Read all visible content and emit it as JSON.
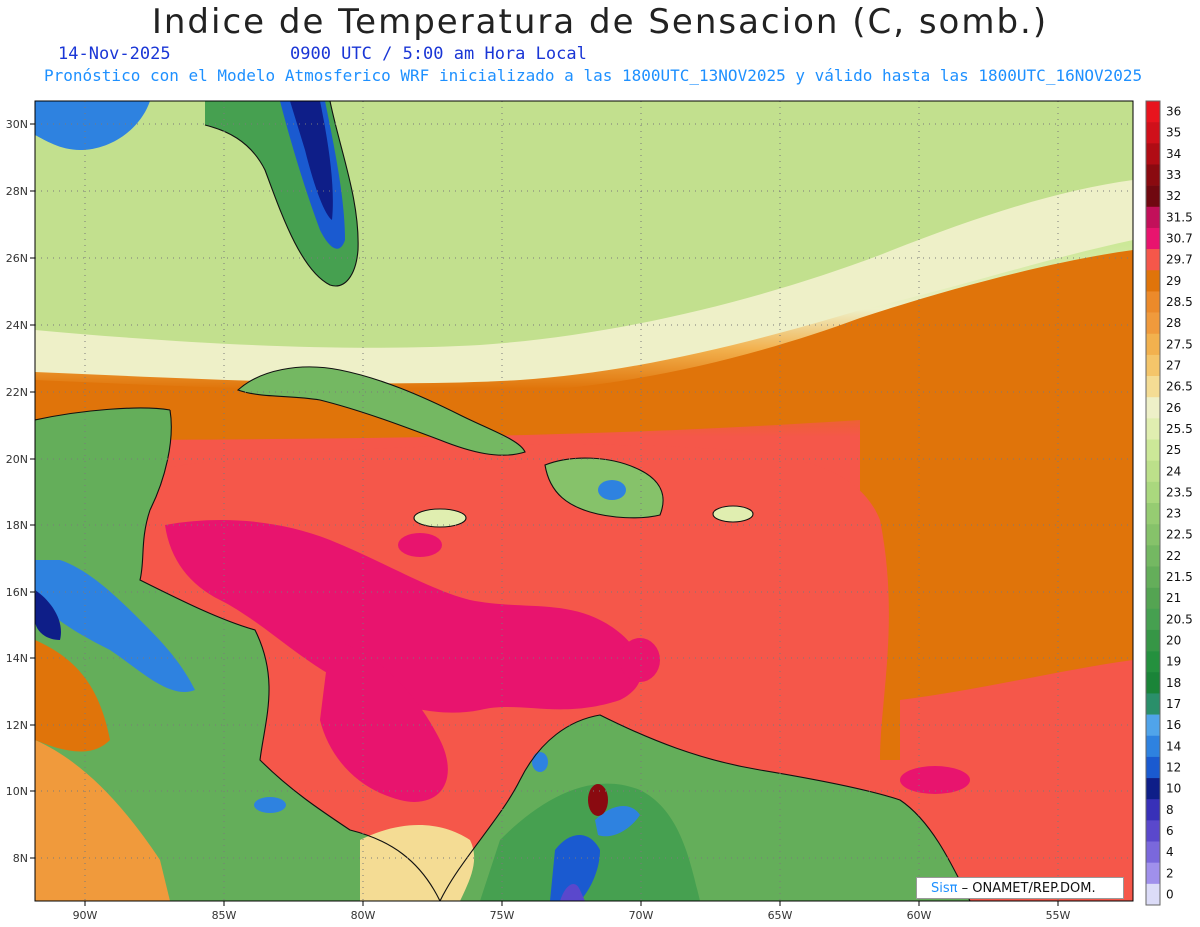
{
  "title": "Indice de Temperatura de Sensacion (C, somb.)",
  "date": "14-Nov-2025",
  "time": "0900 UTC / 5:00 am Hora Local",
  "model_line": "Pronóstico con el Modelo Atmosferico WRF inicializado a las 1800UTC_13NOV2025 y válido hasta las  1800UTC_16NOV2025",
  "credit": {
    "sis": "Sisπ",
    "rest": "– ONAMET/REP.DOM."
  },
  "axes": {
    "x_ticks": [
      "90W",
      "85W",
      "80W",
      "75W",
      "70W",
      "65W",
      "60W",
      "55W"
    ],
    "y_ticks": [
      "30N",
      "28N",
      "26N",
      "24N",
      "22N",
      "20N",
      "18N",
      "16N",
      "14N",
      "12N",
      "10N",
      "8N"
    ]
  },
  "colorbar": {
    "levels": [
      "36",
      "35",
      "34",
      "33",
      "32",
      "31.5",
      "30.7",
      "29.7",
      "29",
      "28.5",
      "28",
      "27.5",
      "27",
      "26.5",
      "26",
      "25.5",
      "25",
      "24",
      "23.5",
      "23",
      "22.5",
      "22",
      "21.5",
      "21",
      "20.5",
      "20",
      "19",
      "18",
      "17",
      "16",
      "14",
      "12",
      "10",
      "8",
      "6",
      "4",
      "2",
      "0"
    ],
    "colors": [
      "#e8141e",
      "#d0101a",
      "#b00c14",
      "#8a0a10",
      "#700810",
      "#c2105a",
      "#e8146e",
      "#f5574a",
      "#e0740a",
      "#ec8a2a",
      "#f09a3c",
      "#f2b14e",
      "#f4c56a",
      "#f4dc94",
      "#eef0c8",
      "#e0eeb0",
      "#cce898",
      "#bce08a",
      "#aad87e",
      "#96cc72",
      "#86c26a",
      "#74b862",
      "#64ae5a",
      "#54a452",
      "#46a050",
      "#369646",
      "#24903e",
      "#1a8438",
      "#2a8f6a",
      "#50a4ea",
      "#2e82e0",
      "#1a5ad0",
      "#0e1e88",
      "#3830b8",
      "#5a48cc",
      "#7a68dc",
      "#a090ec",
      "#dcdcf8"
    ]
  }
}
